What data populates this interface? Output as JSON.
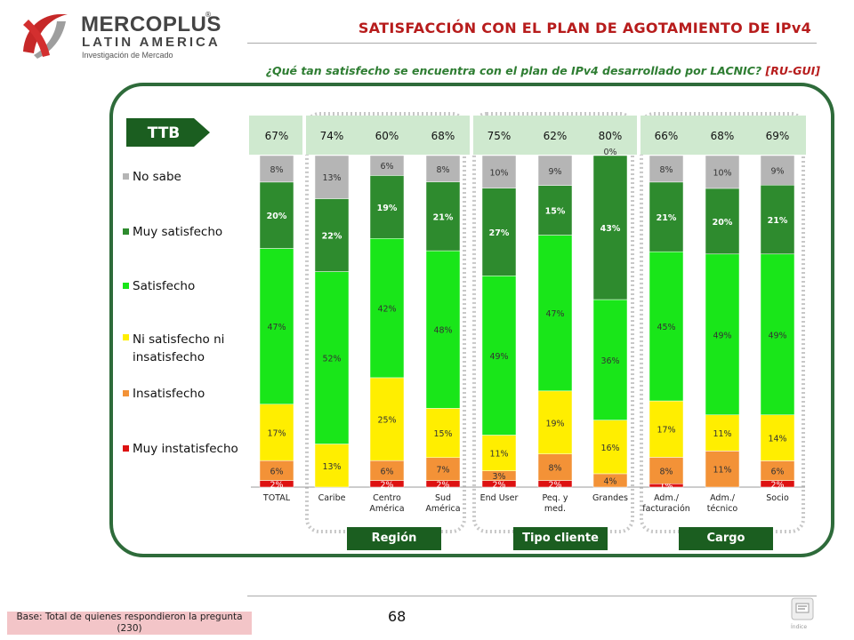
{
  "header": {
    "logo_line1": "MERCOPLUS",
    "logo_reg": "®",
    "logo_line2": "LATIN AMERICA",
    "logo_line3": "Investigación de Mercado",
    "title": "SATISFACCIÓN CON EL PLAN DE AGOTAMIENTO DE IPv4",
    "question": "¿Qué tan satisfecho se encuentra con el plan de IPv4 desarrollado por LACNIC?",
    "question_code": "[RU-GUI]"
  },
  "ttb_label": "TTB",
  "legend": [
    {
      "label": "No sabe",
      "color": "#b5b5b5"
    },
    {
      "label": "Muy satisfecho",
      "color": "#2e8b2e"
    },
    {
      "label": "Satisfecho",
      "color": "#19e619"
    },
    {
      "label": "Ni satisfecho ni insatisfecho",
      "color": "#ffee00"
    },
    {
      "label": "Insatisfecho",
      "color": "#f39237"
    },
    {
      "label": "Muy instatisfecho",
      "color": "#dd1111"
    }
  ],
  "groups": [
    {
      "label": "Región"
    },
    {
      "label": "Tipo cliente"
    },
    {
      "label": "Cargo"
    }
  ],
  "chart_data": {
    "type": "bar",
    "stacked": true,
    "categories": [
      "TOTAL",
      "Caribe",
      "Centro América",
      "Sud América",
      "End User",
      "Peq. y med.",
      "Grandes",
      "Adm./ facturación",
      "Adm./ técnico",
      "Socio"
    ],
    "ttb": [
      "67%",
      "74%",
      "60%",
      "68%",
      "75%",
      "62%",
      "80%",
      "66%",
      "68%",
      "69%"
    ],
    "series": [
      {
        "name": "Muy instatisfecho",
        "color": "#dd1111",
        "values": [
          2,
          0,
          2,
          2,
          2,
          2,
          0,
          1,
          0,
          2
        ]
      },
      {
        "name": "Insatisfecho",
        "color": "#f39237",
        "values": [
          6,
          0,
          6,
          7,
          3,
          8,
          4,
          8,
          11,
          6
        ]
      },
      {
        "name": "Ni satisfecho ni insatisfecho",
        "color": "#ffee00",
        "values": [
          17,
          13,
          25,
          15,
          11,
          19,
          16,
          17,
          11,
          14
        ]
      },
      {
        "name": "Satisfecho",
        "color": "#19e619",
        "values": [
          47,
          52,
          42,
          48,
          49,
          47,
          36,
          45,
          49,
          49
        ]
      },
      {
        "name": "Muy satisfecho",
        "color": "#2e8b2e",
        "values": [
          20,
          22,
          19,
          21,
          27,
          15,
          43,
          21,
          20,
          21
        ]
      },
      {
        "name": "No sabe",
        "color": "#b5b5b5",
        "values": [
          8,
          13,
          6,
          8,
          10,
          9,
          0,
          8,
          10,
          9
        ]
      }
    ]
  },
  "footer": {
    "base": "Base: Total de quienes respondieron la pregunta (230)",
    "page": "68",
    "index_label": "Índice"
  }
}
